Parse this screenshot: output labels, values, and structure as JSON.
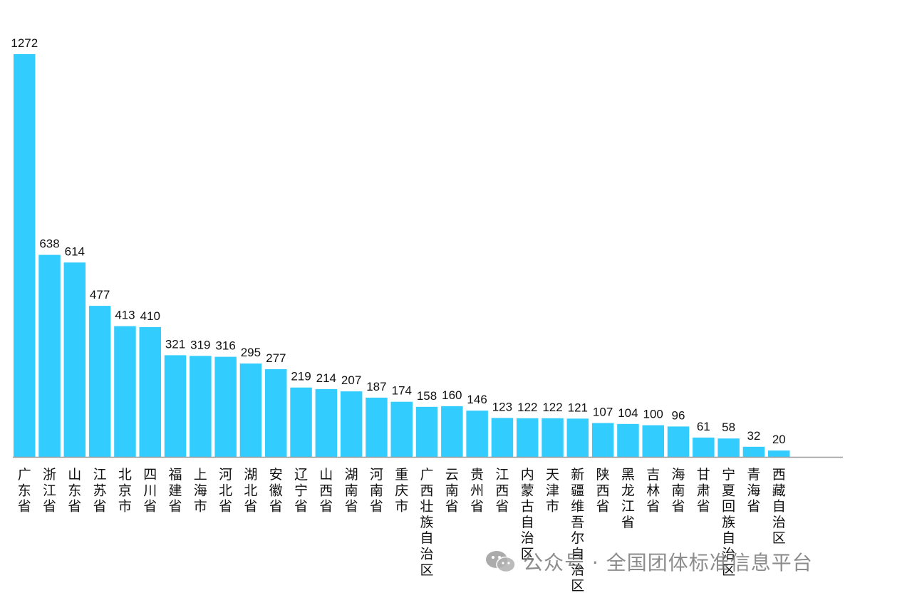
{
  "chart_data": {
    "type": "bar",
    "categories": [
      "广东省",
      "浙江省",
      "山东省",
      "江苏省",
      "北京市",
      "四川省",
      "福建省",
      "上海市",
      "河北省",
      "湖北省",
      "安徽省",
      "辽宁省",
      "山西省",
      "湖南省",
      "河南省",
      "重庆市",
      "广西壮族自治区",
      "云南省",
      "贵州省",
      "江西省",
      "内蒙古自治区",
      "天津市",
      "新疆维吾尔自治区",
      "陕西省",
      "黑龙江省",
      "吉林省",
      "海南省",
      "甘肃省",
      "宁夏回族自治区",
      "青海省",
      "西藏自治区"
    ],
    "values": [
      1272,
      638,
      614,
      477,
      413,
      410,
      321,
      319,
      316,
      295,
      277,
      219,
      214,
      207,
      187,
      174,
      158,
      160,
      146,
      123,
      122,
      122,
      121,
      107,
      104,
      100,
      96,
      61,
      58,
      32,
      20
    ],
    "ylim": [
      0,
      1272
    ],
    "grid": false,
    "bar_color": "#33CCFF",
    "axis_color": "#9a9a9a"
  },
  "watermark": {
    "text": "公众号 · 全国团体标准信息平台",
    "icon": "wechat-icon"
  }
}
